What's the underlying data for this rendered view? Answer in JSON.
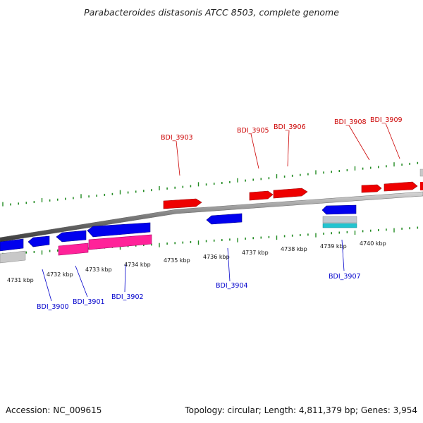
{
  "title": "Parabacteroides distasonis ATCC 8503, complete genome",
  "footer": {
    "accession": "Accession: NC_009615",
    "summary": "Topology: circular; Length: 4,811,379 bp; Genes: 3,954"
  },
  "colors": {
    "forward_gene": "#ff0000",
    "reverse_gene": "#0000ff",
    "rna_gene": "#ff2299",
    "other_gene": "#b0b0b0",
    "cyan_gene": "#22c4d0",
    "forward_label": "#cc0000",
    "reverse_label": "#0000cc",
    "tick": "#228b22"
  },
  "scale": {
    "unit": "kbp",
    "labels": [
      "4731 kbp",
      "4732 kbp",
      "4733 kbp",
      "4734 kbp",
      "4735 kbp",
      "4736 kbp",
      "4737 kbp",
      "4738 kbp",
      "4739 kbp",
      "4740 kbp"
    ]
  },
  "gene_labels": {
    "forward": [
      "BDI_3903",
      "BDI_3905",
      "BDI_3906",
      "BDI_3908",
      "BDI_3909"
    ],
    "reverse": [
      "BDI_3900",
      "BDI_3901",
      "BDI_3902",
      "BDI_3904",
      "BDI_3907"
    ]
  }
}
